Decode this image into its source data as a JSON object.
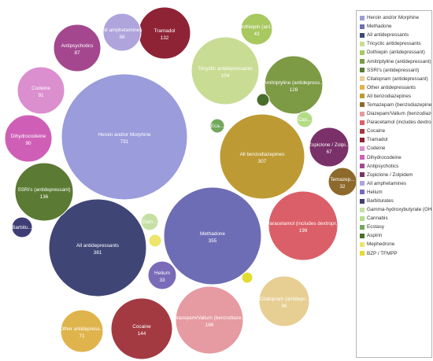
{
  "chart_data": {
    "type": "bubble",
    "title": "",
    "series": [
      {
        "key": "heroin",
        "legend": "Heroin and/or Morphine",
        "label": "Heroin and/or Morphine",
        "value": 791,
        "color": "#9a9cdb"
      },
      {
        "key": "methadone",
        "legend": "Methadone",
        "label": "Methadone",
        "value": 355,
        "color": "#6d6db5"
      },
      {
        "key": "all_antidep",
        "legend": "All antidepressants",
        "label": "All antidepressants",
        "value": 381,
        "color": "#3f4676"
      },
      {
        "key": "tricyclic",
        "legend": "Tricyclic antidepressants",
        "label": "Tricyclic antidepressants",
        "value": 104,
        "color": "#c8dc94"
      },
      {
        "key": "dothiepin",
        "legend": "Dothiepin (antidepressant)",
        "label": "Dothiepin (ant...",
        "value": 43,
        "color": "#a8c860"
      },
      {
        "key": "amitriptyline",
        "legend": "Amitriptyline (antidepressant)",
        "label": "Amitriptyline (antidepress...",
        "value": 128,
        "color": "#7d9a45"
      },
      {
        "key": "ssri",
        "legend": "SSRI's (antidepressant)",
        "label": "SSRi's (antidepressant)",
        "value": 136,
        "color": "#5b7a33"
      },
      {
        "key": "citalopram",
        "legend": "Citalopram  (antidepressant)",
        "label": "Citalopram  (antidepr...",
        "value": 96,
        "color": "#e7cf94"
      },
      {
        "key": "other_antidep",
        "legend": "Other antidepressants",
        "label": "Other antidepress...",
        "value": 71,
        "color": "#e0b44c"
      },
      {
        "key": "all_benzo",
        "legend": "All benzodiazepines",
        "label": "All benzodiazepines",
        "value": 307,
        "color": "#bd9a34"
      },
      {
        "key": "temazepam",
        "legend": "Temazepam (benzodiazepine)",
        "label": "Temazep...",
        "value": 32,
        "color": "#8d6a2c"
      },
      {
        "key": "diazepam",
        "legend": "Diazepam/Valium (benzodiazepine)",
        "label": "Diazepam/Valium (benzodiaze...",
        "value": 186,
        "color": "#e69aa1"
      },
      {
        "key": "paracetamol",
        "legend": "Paracetamol (includes dextropropoxyphene)",
        "label": "Paracetamol (includes dextropr...",
        "value": 199,
        "color": "#db5f68"
      },
      {
        "key": "cocaine",
        "legend": "Cocaine",
        "label": "Cocaine",
        "value": 144,
        "color": "#a33a42"
      },
      {
        "key": "tramadol",
        "legend": "Tramadol",
        "label": "Tramadol",
        "value": 132,
        "color": "#8e2336"
      },
      {
        "key": "codeine",
        "legend": "Codeine",
        "label": "Codeine",
        "value": 91,
        "color": "#db8fcf"
      },
      {
        "key": "dihydrocodeine",
        "legend": "Dihydrocodeine",
        "label": "Dihydrocodeine",
        "value": 90,
        "color": "#cf5fb6"
      },
      {
        "key": "antipsychotics",
        "legend": "Antipsychotics",
        "label": "Antipsychotics",
        "value": 87,
        "color": "#a4478f"
      },
      {
        "key": "zopiclone",
        "legend": "Zopiclone / Zolpidem",
        "label": "Zopiclone / Zolpi...",
        "value": 67,
        "color": "#7a3068"
      },
      {
        "key": "all_amphet",
        "legend": "All amphetamines",
        "label": "All amphetamines",
        "value": 56,
        "color": "#b0a4dd"
      },
      {
        "key": "helium",
        "legend": "Helium",
        "label": "Helium",
        "value": 33,
        "color": "#7a6bb8"
      },
      {
        "key": "barbiturates",
        "legend": "Barbiturates",
        "label": "Barbitu...",
        "value": null,
        "color": "#3f3d76"
      },
      {
        "key": "ghb",
        "legend": "Gamma-hydroxybutyrate (GHB)",
        "label": "Gam...",
        "value": null,
        "color": "#c6e0a4"
      },
      {
        "key": "cannabis",
        "legend": "Cannabis",
        "label": "Can...",
        "value": null,
        "color": "#b4dc86"
      },
      {
        "key": "ecstasy",
        "legend": "Ecstasy",
        "label": "Eca...",
        "value": null,
        "color": "#71a85a"
      },
      {
        "key": "aspirin",
        "legend": "Aspirin",
        "label": "",
        "value": null,
        "color": "#4a6e2c"
      },
      {
        "key": "mephedrone",
        "legend": "Mephedrone",
        "label": "",
        "value": null,
        "color": "#eee56a"
      },
      {
        "key": "bzp",
        "legend": "BZP / TFMPP",
        "label": "",
        "value": null,
        "color": "#e3dc33"
      }
    ]
  }
}
